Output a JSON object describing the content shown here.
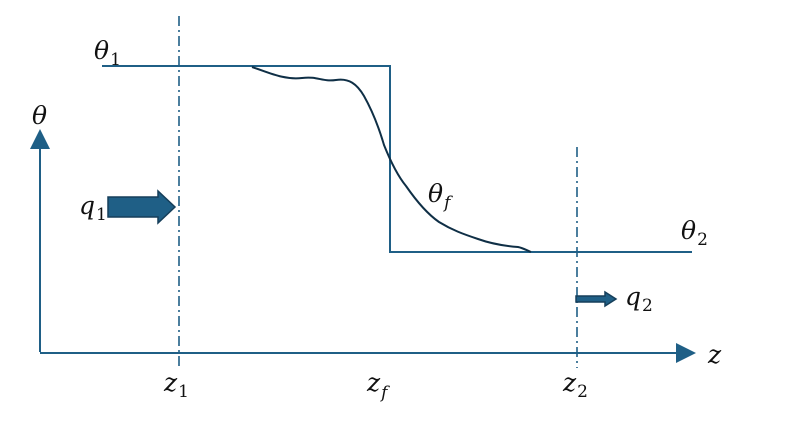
{
  "colors": {
    "line": "#1f5f86",
    "arrow_fill": "#1f5f86",
    "arrow_stroke": "#163f5a",
    "profile": "#0f2f46",
    "text": "#111111"
  },
  "labels": {
    "theta": "θ",
    "theta1_main": "θ",
    "theta1_sub": "1",
    "theta2_main": "θ",
    "theta2_sub": "2",
    "thetaf_main": "θ",
    "thetaf_sub": "f",
    "q1_main": "q",
    "q1_sub": "1",
    "q2_main": "q",
    "q2_sub": "2",
    "z": "z",
    "z1_main": "z",
    "z1_sub": "1",
    "zf_main": "z",
    "zf_sub": "f",
    "z2_main": "z",
    "z2_sub": "2"
  }
}
